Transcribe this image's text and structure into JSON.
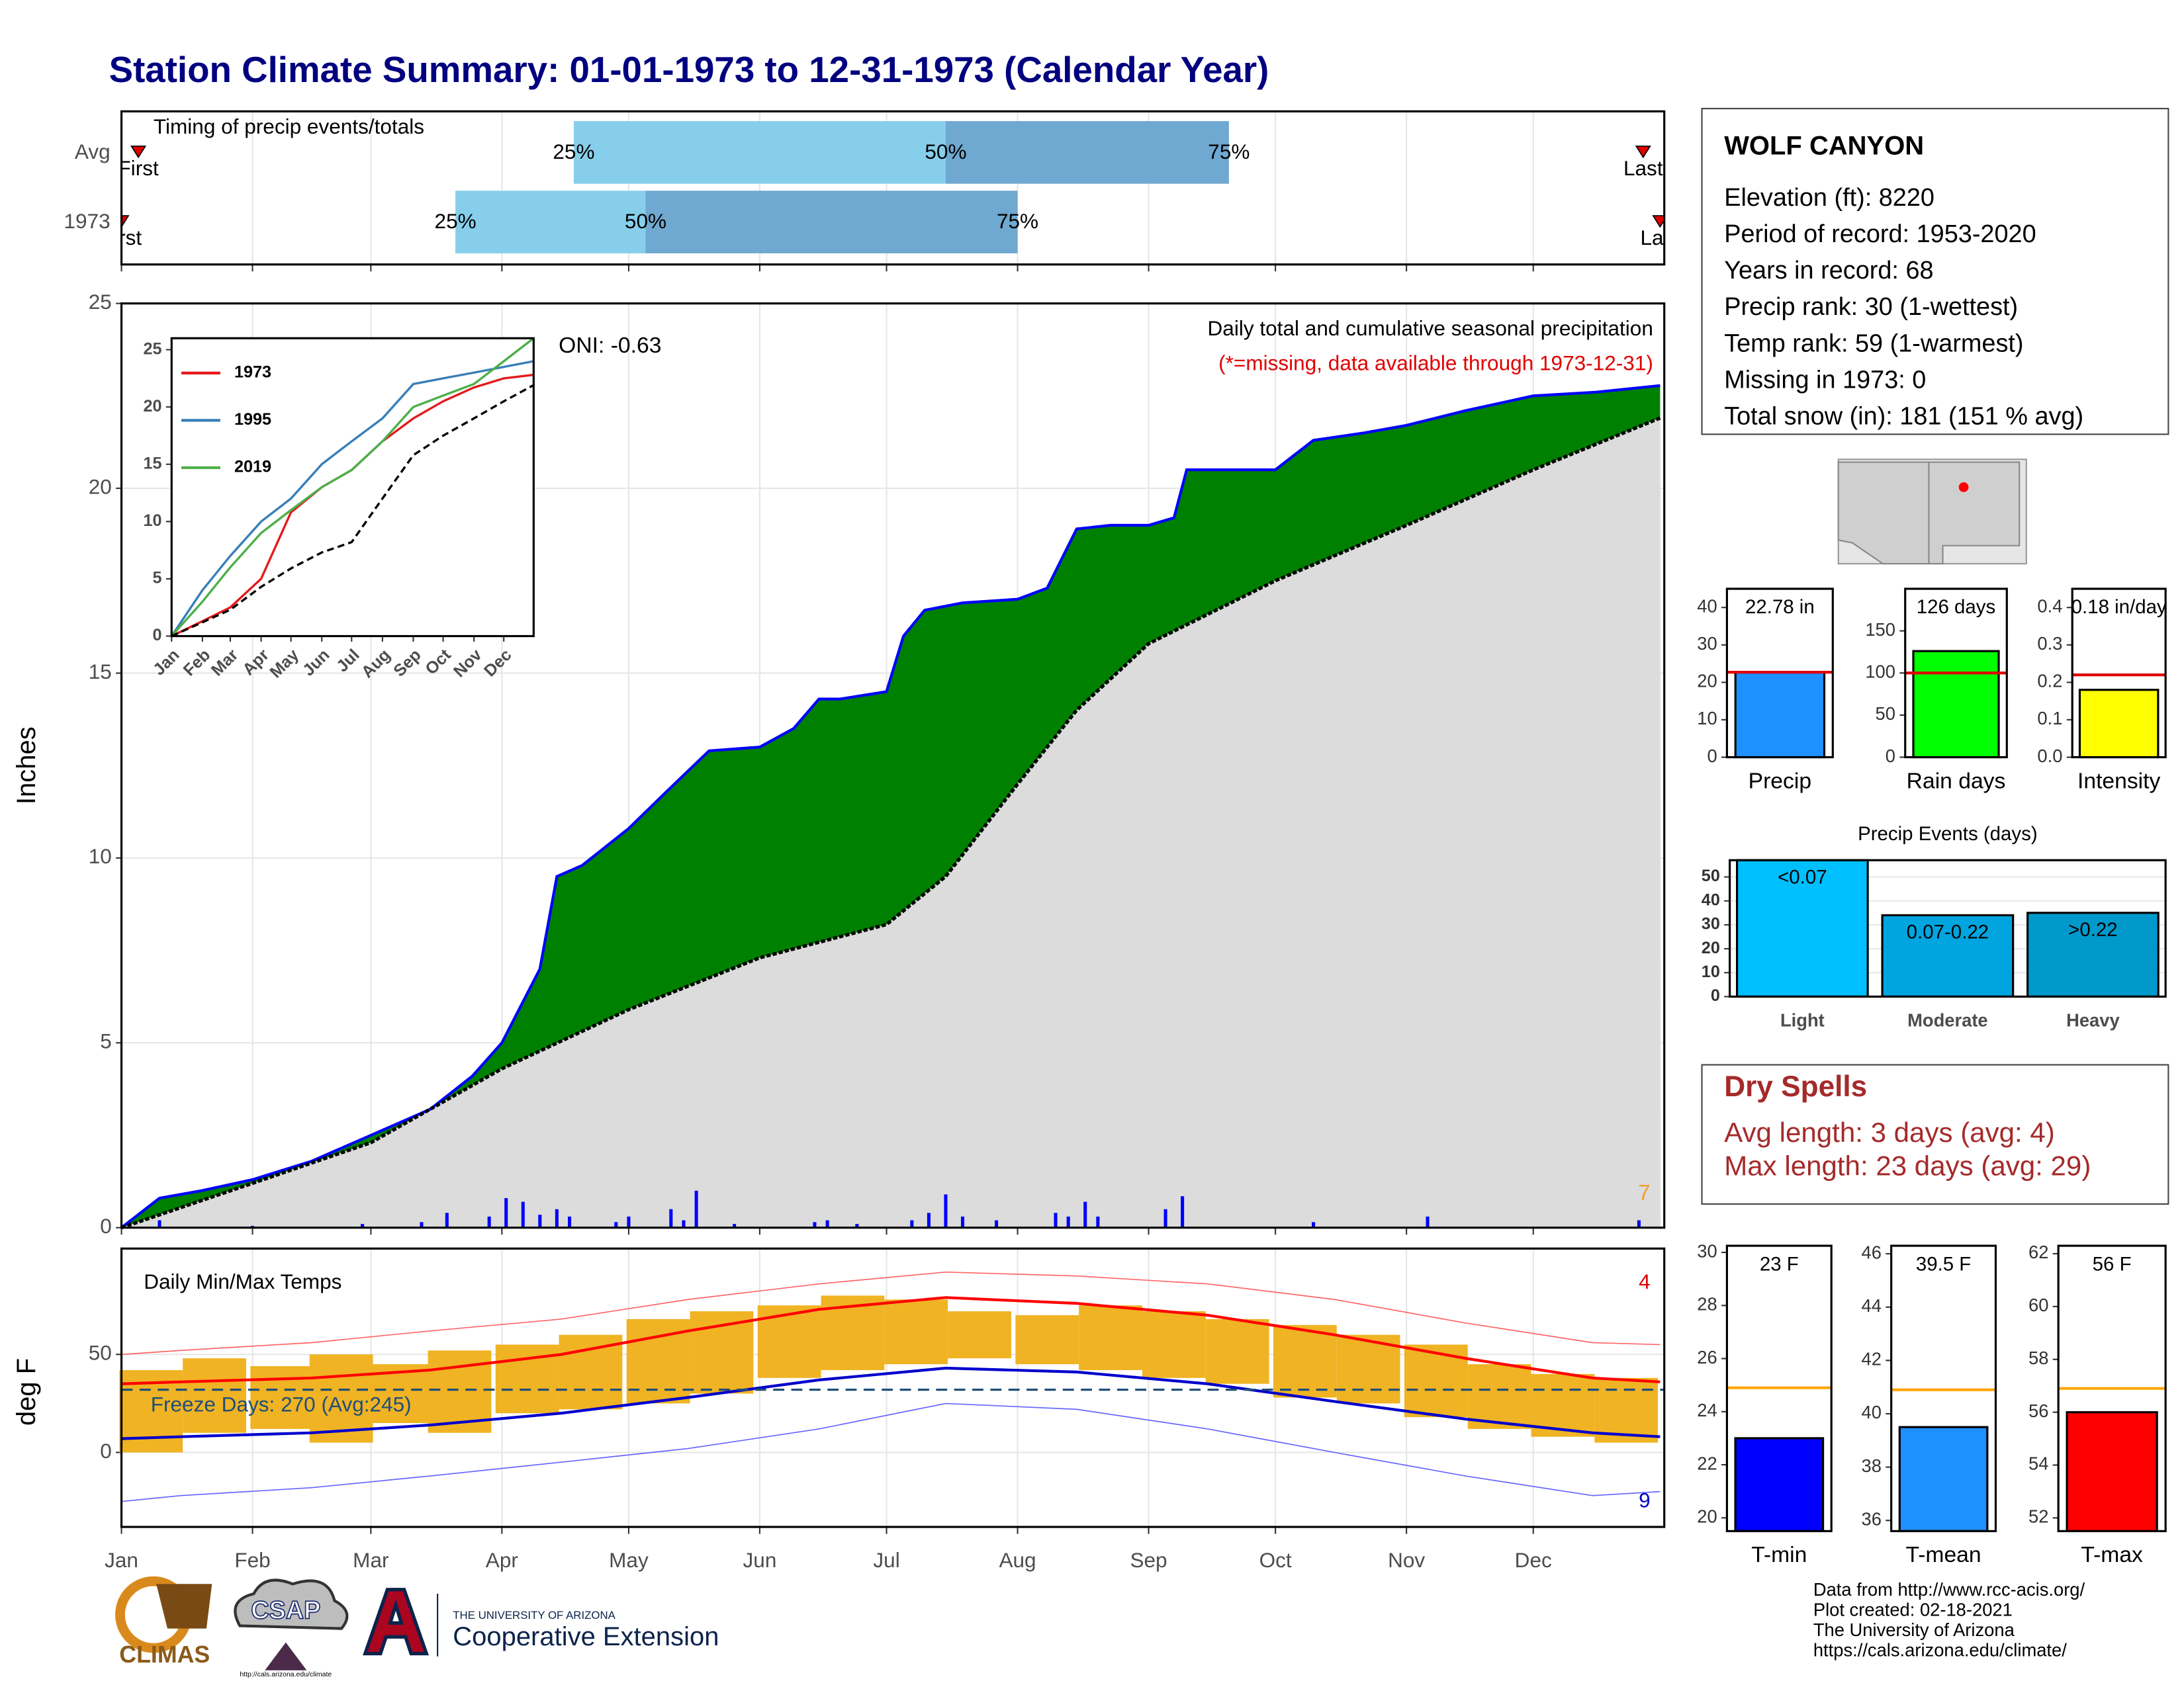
{
  "title": "Station Climate Summary: 01-01-1973 to 12-31-1973 (Calendar Year)",
  "station": {
    "name": "WOLF CANYON",
    "lines": [
      "Elevation (ft): 8220",
      "Period of record: 1953-2020",
      "Years in record: 68",
      "Precip rank: 30 (1-wettest)",
      "Temp rank: 59 (1-warmest)",
      "Missing in 1973: 0",
      "Total snow (in): 181 (151 % avg)"
    ]
  },
  "dry_spells": {
    "title": "Dry Spells",
    "lines": [
      "Avg length: 3 days (avg: 4)",
      "Max length: 23 days (avg: 29)"
    ]
  },
  "credits": [
    "Data from http://www.rcc-acis.org/",
    "Plot created: 02-18-2021",
    "The University of Arizona",
    "https://cals.arizona.edu/climate/"
  ],
  "logos": {
    "climas": "CLIMAS",
    "csap": "CSAP",
    "csap_url": "http://cals.arizona.edu/climate",
    "university": "THE UNIVERSITY OF ARIZONA",
    "extension": "Cooperative Extension"
  },
  "chart_data": [
    {
      "type": "timing",
      "title": "Timing of precip events/totals",
      "xlim": [
        1,
        366
      ],
      "xticks": [
        1,
        32,
        60,
        91,
        121,
        152,
        182,
        213,
        244,
        274,
        305,
        335
      ],
      "marker_labels": [
        "First",
        "Last"
      ],
      "quartile_labels": [
        "25%",
        "50%",
        "75%"
      ],
      "colors": [
        "#87ceeb",
        "#6fa8d0",
        "#e00000"
      ],
      "rows": [
        {
          "label": "Avg",
          "first": 5,
          "q25": 108,
          "q50": 196,
          "q75": 263,
          "last": 361
        },
        {
          "label": "1973",
          "first": 1,
          "q25": 80,
          "q50": 125,
          "q75": 213,
          "last": 365
        }
      ]
    },
    {
      "type": "cumulative",
      "title": "Daily total and cumulative seasonal precipitation",
      "subtitle": "(*=missing, data available through 1973-12-31)",
      "annotation": "ONI: -0.63",
      "count_label": "7",
      "y_label": "Inches",
      "xlim": [
        1,
        366
      ],
      "ylim": [
        0,
        25
      ],
      "yticks": [
        0,
        5,
        10,
        15,
        20,
        25
      ],
      "xticks": [
        1,
        32,
        60,
        91,
        121,
        152,
        182,
        213,
        244,
        274,
        305,
        335
      ],
      "grid": true,
      "series": [
        {
          "color": "#0000ff",
          "fill": "#008000",
          "x": [
            1,
            10,
            20,
            32,
            46,
            60,
            74,
            84,
            91,
            100,
            104,
            110,
            121,
            130,
            140,
            152,
            160,
            166,
            171,
            182,
            186,
            191,
            200,
            213,
            220,
            227,
            235,
            244,
            250,
            253,
            262,
            274,
            283,
            295,
            305,
            319,
            335,
            350,
            365
          ],
          "values": [
            0,
            0.8,
            1.0,
            1.3,
            1.8,
            2.5,
            3.2,
            4.1,
            5.0,
            7.0,
            9.5,
            9.8,
            10.8,
            11.8,
            12.9,
            13.0,
            13.5,
            14.3,
            14.3,
            14.5,
            16.0,
            16.7,
            16.9,
            17.0,
            17.3,
            18.9,
            19.0,
            19.0,
            19.2,
            20.5,
            20.5,
            20.5,
            21.3,
            21.5,
            21.7,
            22.1,
            22.5,
            22.6,
            22.78
          ]
        },
        {
          "color": "#000000",
          "fill": "#dcdcdc",
          "x": [
            1,
            32,
            60,
            91,
            121,
            152,
            182,
            196,
            213,
            227,
            244,
            274,
            305,
            335,
            365
          ],
          "values": [
            0,
            1.2,
            2.3,
            4.3,
            5.9,
            7.3,
            8.2,
            9.5,
            12.0,
            14.0,
            15.8,
            17.5,
            19.0,
            20.5,
            21.9
          ]
        }
      ],
      "daily": {
        "color": "#0000ff",
        "x": [
          10,
          32,
          58,
          72,
          78,
          88,
          92,
          96,
          100,
          104,
          107,
          118,
          121,
          131,
          134,
          137,
          146,
          165,
          168,
          175,
          188,
          192,
          196,
          200,
          208,
          222,
          225,
          229,
          232,
          248,
          252,
          283,
          310,
          360
        ],
        "values": [
          0.2,
          0.05,
          0.1,
          0.15,
          0.4,
          0.3,
          0.8,
          0.7,
          0.35,
          0.5,
          0.3,
          0.15,
          0.3,
          0.5,
          0.2,
          1.0,
          0.1,
          0.15,
          0.2,
          0.1,
          0.2,
          0.4,
          0.9,
          0.3,
          0.2,
          0.4,
          0.3,
          0.7,
          0.3,
          0.5,
          0.85,
          0.15,
          0.3,
          0.2
        ]
      }
    },
    {
      "type": "line",
      "xlim": [
        1,
        365
      ],
      "ylim": [
        0,
        26
      ],
      "yticks": [
        0,
        5,
        10,
        15,
        20,
        25
      ],
      "xticks": [
        {
          "value": 1,
          "label": "Jan"
        },
        {
          "value": 32,
          "label": "Feb"
        },
        {
          "value": 60,
          "label": "Mar"
        },
        {
          "value": 91,
          "label": "Apr"
        },
        {
          "value": 121,
          "label": "May"
        },
        {
          "value": 152,
          "label": "Jun"
        },
        {
          "value": 182,
          "label": "Jul"
        },
        {
          "value": 213,
          "label": "Aug"
        },
        {
          "value": 244,
          "label": "Sep"
        },
        {
          "value": 274,
          "label": "Oct"
        },
        {
          "value": 305,
          "label": "Nov"
        },
        {
          "value": 335,
          "label": "Dec"
        }
      ],
      "x": [
        1,
        32,
        60,
        91,
        121,
        152,
        182,
        213,
        244,
        274,
        305,
        335,
        365
      ],
      "series": [
        {
          "name": "1973",
          "color": "#e41a1c",
          "values": [
            0,
            1.3,
            2.5,
            5.0,
            10.8,
            13.0,
            14.5,
            17.0,
            19.0,
            20.5,
            21.7,
            22.5,
            22.8
          ]
        },
        {
          "name": "1995",
          "color": "#377eb8",
          "values": [
            0,
            4.0,
            7.0,
            10.0,
            12.0,
            15.0,
            17.0,
            19.0,
            22.0,
            22.5,
            23.0,
            23.5,
            24.0
          ]
        },
        {
          "name": "2019",
          "color": "#4daf4a",
          "values": [
            0,
            3.0,
            6.0,
            9.0,
            11.0,
            13.0,
            14.5,
            17.0,
            20.0,
            21.0,
            22.0,
            24.0,
            26.0
          ]
        },
        {
          "color": "#000000",
          "dashed": true,
          "values": [
            0,
            1.2,
            2.3,
            4.3,
            5.9,
            7.3,
            8.2,
            12.0,
            15.8,
            17.5,
            19.0,
            20.5,
            21.9
          ]
        }
      ]
    },
    {
      "type": "temps",
      "title": "Daily Min/Max Temps",
      "y_label": "deg F",
      "xlim": [
        1,
        366
      ],
      "ylim": [
        -38,
        104
      ],
      "yticks": [
        0,
        50
      ],
      "grid": true,
      "xticks": [
        {
          "value": 1,
          "label": "Jan"
        },
        {
          "value": 32,
          "label": "Feb"
        },
        {
          "value": 60,
          "label": "Mar"
        },
        {
          "value": 91,
          "label": "Apr"
        },
        {
          "value": 121,
          "label": "May"
        },
        {
          "value": 152,
          "label": "Jun"
        },
        {
          "value": 182,
          "label": "Jul"
        },
        {
          "value": 213,
          "label": "Aug"
        },
        {
          "value": 244,
          "label": "Sep"
        },
        {
          "value": 274,
          "label": "Oct"
        },
        {
          "value": 305,
          "label": "Nov"
        },
        {
          "value": 335,
          "label": "Dec"
        }
      ],
      "freeze_temp": 32,
      "freeze_label": "Freeze Days: 270 (Avg:245)",
      "max_count_label": "4",
      "min_count_label": "9",
      "daily": {
        "color": "#f0b323",
        "x": [
          8,
          23,
          39,
          53,
          67,
          81,
          97,
          112,
          128,
          143,
          159,
          174,
          189,
          204,
          220,
          235,
          250,
          265,
          281,
          296,
          312,
          327,
          342,
          357
        ],
        "low": [
          0,
          10,
          12,
          5,
          15,
          10,
          20,
          22,
          25,
          30,
          38,
          42,
          45,
          48,
          45,
          42,
          38,
          35,
          28,
          25,
          18,
          12,
          8,
          5
        ],
        "high": [
          42,
          48,
          44,
          50,
          45,
          52,
          55,
          60,
          68,
          72,
          75,
          80,
          78,
          72,
          70,
          75,
          72,
          68,
          65,
          60,
          55,
          45,
          40,
          38
        ]
      },
      "x": [
        1,
        15,
        46,
        74,
        105,
        135,
        166,
        196,
        227,
        258,
        288,
        319,
        349,
        365
      ],
      "series": [
        {
          "color": "#ff0000",
          "width": 2,
          "values": [
            35,
            36,
            38,
            42,
            50,
            62,
            73,
            79,
            76,
            70,
            60,
            48,
            38,
            36
          ]
        },
        {
          "color": "#0000cc",
          "width": 2,
          "values": [
            7,
            8,
            10,
            14,
            20,
            28,
            37,
            43,
            41,
            35,
            26,
            17,
            10,
            8
          ]
        },
        {
          "color": "#ff6666",
          "width": 0.8,
          "values": [
            50,
            52,
            56,
            62,
            68,
            78,
            86,
            92,
            90,
            86,
            78,
            66,
            56,
            55
          ]
        },
        {
          "color": "#6666ff",
          "width": 0.8,
          "values": [
            -25,
            -22,
            -18,
            -12,
            -5,
            2,
            12,
            25,
            22,
            12,
            0,
            -12,
            -22,
            -20
          ]
        }
      ]
    },
    {
      "type": "summary-bar",
      "categories": [
        "Precip"
      ],
      "values": [
        22.78
      ],
      "value_labels": [
        "22.78 in"
      ],
      "average": 22.7,
      "color": "#1e90ff",
      "avg_color": "#e00000",
      "ylim": [
        0,
        45
      ],
      "yticks": [
        0,
        10,
        20,
        30,
        40
      ]
    },
    {
      "type": "summary-bar",
      "categories": [
        "Rain days"
      ],
      "values": [
        126
      ],
      "value_labels": [
        "126 days"
      ],
      "average": 100,
      "color": "#00ff00",
      "avg_color": "#e00000",
      "ylim": [
        0,
        200
      ],
      "yticks": [
        0,
        50,
        100,
        150
      ]
    },
    {
      "type": "summary-bar",
      "categories": [
        "Intensity"
      ],
      "values": [
        0.18
      ],
      "value_labels": [
        "0.18 in/day"
      ],
      "average": 0.22,
      "color": "#ffff00",
      "avg_color": "#e00000",
      "ylim": [
        0,
        0.45
      ],
      "yticks": [
        {
          "value": 0,
          "label": "0.0"
        },
        0.1,
        0.2,
        0.3,
        0.4
      ]
    },
    {
      "type": "bar",
      "title": "Precip Events (days)",
      "categories": [
        "Light",
        "Moderate",
        "Heavy"
      ],
      "values": [
        57,
        34,
        35
      ],
      "bin_labels": [
        "<0.07",
        "0.07-0.22",
        ">0.22"
      ],
      "colors": [
        "#00bfff",
        "#00a5e0",
        "#0099cc"
      ],
      "ylim": [
        0,
        57
      ],
      "yticks": [
        0,
        10,
        20,
        30,
        40,
        50
      ],
      "grid": true
    },
    {
      "type": "summary-bar",
      "categories": [
        "T-min"
      ],
      "values": [
        23
      ],
      "value_labels": [
        "23 F"
      ],
      "average": 24.9,
      "color": "#0000ff",
      "avg_color": "#ffa500",
      "ylim": [
        19.5,
        30.25
      ],
      "yticks": [
        20,
        22,
        24,
        26,
        28,
        30
      ]
    },
    {
      "type": "summary-bar",
      "categories": [
        "T-mean"
      ],
      "values": [
        39.5
      ],
      "value_labels": [
        "39.5 F"
      ],
      "average": 40.9,
      "color": "#1e90ff",
      "avg_color": "#ffa500",
      "ylim": [
        35.6,
        46.3
      ],
      "yticks": [
        36,
        38,
        40,
        42,
        44,
        46
      ]
    },
    {
      "type": "summary-bar",
      "categories": [
        "T-max"
      ],
      "values": [
        56
      ],
      "value_labels": [
        "56 F"
      ],
      "average": 56.9,
      "color": "#ff0000",
      "avg_color": "#ffa500",
      "ylim": [
        51.5,
        62.3
      ],
      "yticks": [
        52,
        54,
        56,
        58,
        60,
        62
      ]
    }
  ]
}
